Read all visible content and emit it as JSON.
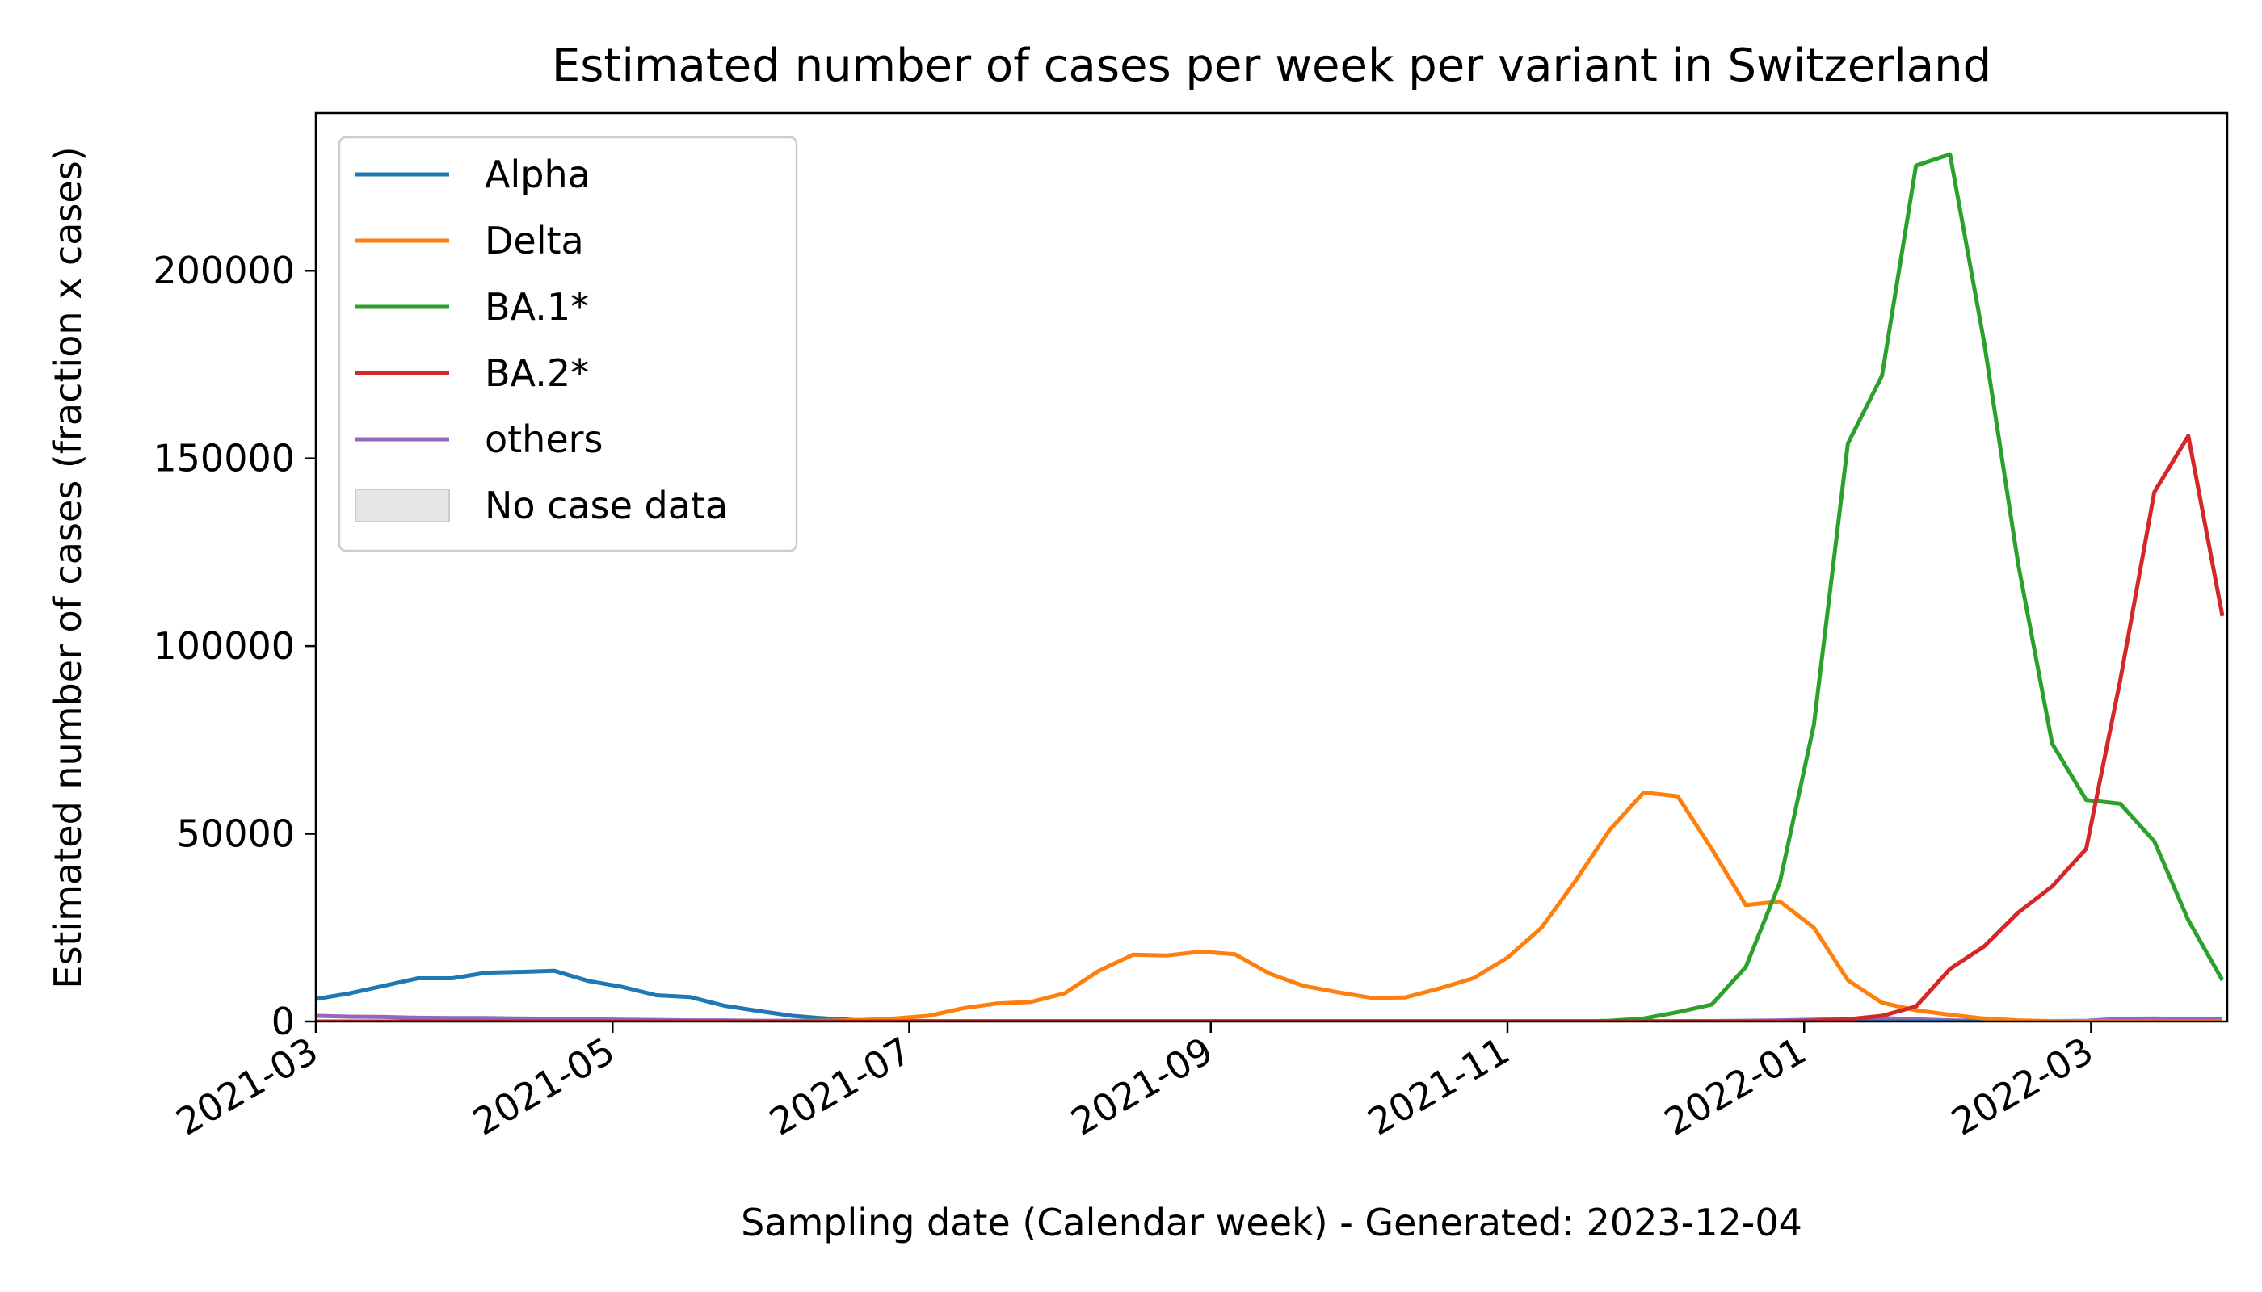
{
  "chart_data": {
    "type": "line",
    "title": "Estimated number of cases per week per variant in Switzerland",
    "xlabel": "Sampling date (Calendar week) - Generated: 2023-12-04",
    "ylabel": "Estimated number of cases (fraction x cases)",
    "xlim": [
      "2021-03-01",
      "2022-03-29"
    ],
    "ylim": [
      0,
      242000
    ],
    "x_ticks": [
      "2021-03",
      "2021-05",
      "2021-07",
      "2021-09",
      "2021-11",
      "2022-01",
      "2022-03"
    ],
    "y_ticks": [
      0,
      50000,
      100000,
      150000,
      200000
    ],
    "grid": false,
    "legend_position": "top-left",
    "legend_extra": {
      "label": "No case data",
      "color": "#e5e5e5"
    },
    "x": [
      "2021-03-01",
      "2021-03-08",
      "2021-03-15",
      "2021-03-22",
      "2021-03-29",
      "2021-04-05",
      "2021-04-12",
      "2021-04-19",
      "2021-04-26",
      "2021-05-03",
      "2021-05-10",
      "2021-05-17",
      "2021-05-24",
      "2021-05-31",
      "2021-06-07",
      "2021-06-14",
      "2021-06-21",
      "2021-06-28",
      "2021-07-05",
      "2021-07-12",
      "2021-07-19",
      "2021-07-26",
      "2021-08-02",
      "2021-08-09",
      "2021-08-16",
      "2021-08-23",
      "2021-08-30",
      "2021-09-06",
      "2021-09-13",
      "2021-09-20",
      "2021-09-27",
      "2021-10-04",
      "2021-10-11",
      "2021-10-18",
      "2021-10-25",
      "2021-11-01",
      "2021-11-08",
      "2021-11-15",
      "2021-11-22",
      "2021-11-29",
      "2021-12-06",
      "2021-12-13",
      "2021-12-20",
      "2021-12-27",
      "2022-01-03",
      "2022-01-10",
      "2022-01-17",
      "2022-01-24",
      "2022-01-31",
      "2022-02-07",
      "2022-02-14",
      "2022-02-21",
      "2022-02-28",
      "2022-03-07",
      "2022-03-14",
      "2022-03-21",
      "2022-03-28"
    ],
    "series": [
      {
        "name": "Alpha",
        "color": "#1f77b4",
        "values": [
          6000,
          7500,
          9500,
          11500,
          11500,
          13000,
          13200,
          13500,
          10800,
          9200,
          7000,
          6500,
          4200,
          2800,
          1500,
          800,
          300,
          100,
          50,
          0,
          0,
          0,
          0,
          0,
          0,
          0,
          0,
          0,
          0,
          0,
          0,
          0,
          0,
          0,
          0,
          0,
          0,
          0,
          0,
          0,
          0,
          0,
          0,
          0,
          0,
          0,
          0,
          0,
          0,
          0,
          0,
          0,
          0,
          0,
          0,
          0,
          0
        ]
      },
      {
        "name": "Delta",
        "color": "#ff7f0e",
        "values": [
          0,
          0,
          0,
          0,
          0,
          0,
          0,
          0,
          0,
          0,
          0,
          0,
          0,
          0,
          100,
          200,
          400,
          800,
          1500,
          3500,
          4800,
          5200,
          7500,
          13500,
          17800,
          17600,
          18600,
          17900,
          12800,
          9500,
          7800,
          6300,
          6400,
          8800,
          11500,
          17000,
          25000,
          37500,
          51000,
          61000,
          60000,
          46000,
          31000,
          32000,
          25000,
          11000,
          5000,
          3000,
          1800,
          800,
          300,
          100,
          100,
          0,
          0,
          0,
          0
        ]
      },
      {
        "name": "BA.1*",
        "color": "#2ca02c",
        "values": [
          0,
          0,
          0,
          0,
          0,
          0,
          0,
          0,
          0,
          0,
          0,
          0,
          0,
          0,
          0,
          0,
          0,
          0,
          0,
          0,
          0,
          0,
          0,
          0,
          0,
          0,
          0,
          0,
          0,
          0,
          0,
          0,
          0,
          0,
          0,
          0,
          0,
          0,
          200,
          800,
          2500,
          4500,
          14500,
          37000,
          79000,
          154000,
          172000,
          228000,
          231000,
          181000,
          122000,
          74000,
          59000,
          58000,
          48000,
          27000,
          11000
        ]
      },
      {
        "name": "BA.2*",
        "color": "#d62728",
        "values": [
          0,
          0,
          0,
          0,
          0,
          0,
          0,
          0,
          0,
          0,
          0,
          0,
          0,
          0,
          0,
          0,
          0,
          0,
          0,
          0,
          0,
          0,
          0,
          0,
          0,
          0,
          0,
          0,
          0,
          0,
          0,
          0,
          0,
          0,
          0,
          0,
          0,
          0,
          0,
          0,
          0,
          0,
          0,
          0,
          200,
          600,
          1500,
          4000,
          14000,
          20000,
          29000,
          36000,
          46000,
          91000,
          141000,
          156000,
          108000
        ]
      },
      {
        "name": "others",
        "color": "#9467bd",
        "values": [
          1500,
          1300,
          1200,
          1000,
          900,
          900,
          800,
          700,
          600,
          500,
          400,
          300,
          300,
          200,
          200,
          100,
          100,
          100,
          100,
          100,
          100,
          100,
          100,
          100,
          100,
          100,
          100,
          100,
          100,
          100,
          100,
          100,
          100,
          100,
          100,
          100,
          100,
          100,
          100,
          100,
          100,
          100,
          200,
          300,
          500,
          700,
          900,
          600,
          300,
          200,
          100,
          100,
          200,
          700,
          800,
          600,
          700
        ]
      }
    ]
  }
}
